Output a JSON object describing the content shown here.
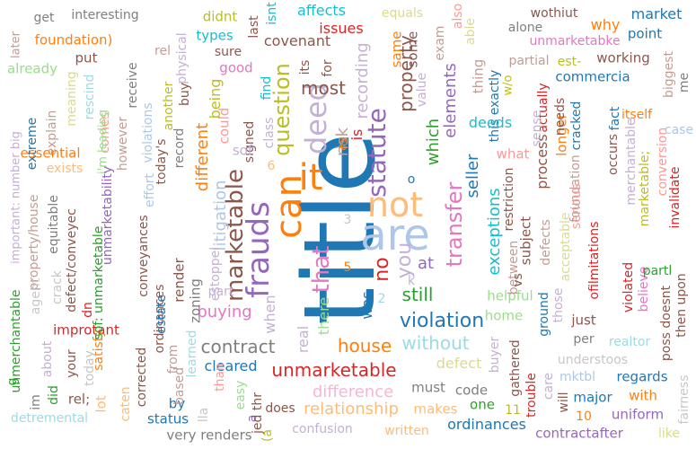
{
  "words": [
    {
      "text": "title",
      "color": "#1f77b4"
    },
    {
      "text": "are",
      "color": "#aec7e8"
    },
    {
      "text": "not",
      "color": "#ffbb78"
    },
    {
      "text": "can",
      "color": "#ff7f0e"
    },
    {
      "text": "frauds",
      "color": "#9467bd"
    },
    {
      "text": "marketable",
      "color": "#8c564b"
    },
    {
      "text": "that",
      "color": "#e377c2"
    },
    {
      "text": "it",
      "color": "#ff7f0e"
    },
    {
      "text": "deed",
      "color": "#c5b0d5"
    },
    {
      "text": "statute",
      "color": "#9467bd"
    },
    {
      "text": "transfer",
      "color": "#e377c2"
    },
    {
      "text": "question",
      "color": "#bcbd22"
    },
    {
      "text": "unmarketable",
      "color": "#d62728"
    },
    {
      "text": "violation",
      "color": "#1f77b4"
    },
    {
      "text": "house",
      "color": "#ff7f0e"
    },
    {
      "text": "without",
      "color": "#9edae5"
    },
    {
      "text": "contract",
      "color": "#7f7f7f"
    },
    {
      "text": "difference",
      "color": "#f7b6d2"
    },
    {
      "text": "relationship",
      "color": "#ffbb78"
    },
    {
      "text": "buying",
      "color": "#e377c2"
    },
    {
      "text": "cleared",
      "color": "#1f77b4"
    },
    {
      "text": "exceptions",
      "color": "#17becf"
    },
    {
      "text": "still",
      "color": "#2ca02c"
    },
    {
      "text": "property",
      "color": "#8c564b"
    },
    {
      "text": "most",
      "color": "#8c564b"
    },
    {
      "text": "seller",
      "color": "#1f77b4"
    },
    {
      "text": "elements",
      "color": "#9467bd"
    },
    {
      "text": "recording",
      "color": "#c5b0d5"
    },
    {
      "text": "risk",
      "color": "#c49c94"
    },
    {
      "text": "litigation",
      "color": "#aec7e8"
    },
    {
      "text": "different",
      "color": "#ff7f0e"
    },
    {
      "text": "covenant",
      "color": "#8c564b"
    },
    {
      "text": "issues",
      "color": "#d62728"
    },
    {
      "text": "affects",
      "color": "#17becf"
    },
    {
      "text": "equals",
      "color": "#dbdb8d"
    },
    {
      "text": "interesting",
      "color": "#7f7f7f"
    },
    {
      "text": "foundation)",
      "color": "#ff7f0e"
    },
    {
      "text": "get",
      "color": "#7f7f7f"
    },
    {
      "text": "later",
      "color": "#c49c94"
    },
    {
      "text": "already",
      "color": "#98df8a"
    },
    {
      "text": "put",
      "color": "#8c564b"
    },
    {
      "text": "rel",
      "color": "#c49c94"
    },
    {
      "text": "didnt",
      "color": "#bcbd22"
    },
    {
      "text": "types",
      "color": "#17becf"
    },
    {
      "text": "sure",
      "color": "#8c564b"
    },
    {
      "text": "good",
      "color": "#e377c2"
    },
    {
      "text": "being",
      "color": "#bcbd22"
    },
    {
      "text": "last",
      "color": "#8c564b"
    },
    {
      "text": "for",
      "color": "#8c564b"
    },
    {
      "text": "same",
      "color": "#ff7f0e"
    },
    {
      "text": "some",
      "color": "#8c564b"
    },
    {
      "text": "which",
      "color": "#2ca02c"
    },
    {
      "text": "this exactly",
      "color": "#1f77b4"
    },
    {
      "text": "deeds",
      "color": "#17becf"
    },
    {
      "text": "alone",
      "color": "#7f7f7f"
    },
    {
      "text": "wothiut",
      "color": "#8c564b"
    },
    {
      "text": "market",
      "color": "#1f77b4"
    },
    {
      "text": "why",
      "color": "#ff7f0e"
    },
    {
      "text": "point",
      "color": "#1f77b4"
    },
    {
      "text": "unmarketabke",
      "color": "#e377c2"
    },
    {
      "text": "partial",
      "color": "#c49c94"
    },
    {
      "text": "est-",
      "color": "#bcbd22"
    },
    {
      "text": "working",
      "color": "#8c564b"
    },
    {
      "text": "commercia",
      "color": "#1f77b4"
    },
    {
      "text": "biggest",
      "color": "#c49c94"
    },
    {
      "text": "me",
      "color": "#7f7f7f"
    },
    {
      "text": "itself",
      "color": "#ff7f0e"
    },
    {
      "text": "case",
      "color": "#aec7e8"
    },
    {
      "text": "conversion",
      "color": "#ff9896"
    },
    {
      "text": "marketable;",
      "color": "#bcbd22"
    },
    {
      "text": "invalidate",
      "color": "#d62728"
    },
    {
      "text": "fact",
      "color": "#1f77b4"
    },
    {
      "text": "occurs",
      "color": "#8c564b"
    },
    {
      "text": "merchantable",
      "color": "#c5b0d5"
    },
    {
      "text": "important: number big",
      "color": "#c5b0d5"
    },
    {
      "text": "extreme",
      "color": "#1f77b4"
    },
    {
      "text": "explain",
      "color": "#c49c94"
    },
    {
      "text": "meaning",
      "color": "#dbdb8d"
    },
    {
      "text": "rescind",
      "color": "#9edae5"
    },
    {
      "text": "essential",
      "color": "#ff7f0e"
    },
    {
      "text": "exists",
      "color": "#ffbb78"
    },
    {
      "text": "unmerchantable",
      "color": "#2ca02c"
    },
    {
      "text": "improtant",
      "color": "#d62728"
    },
    {
      "text": "satisfy",
      "color": "#ff7f0e"
    },
    {
      "text": "corrected",
      "color": "#8c564b"
    },
    {
      "text": "ordinances",
      "color": "#8c564b"
    },
    {
      "text": "conveyances",
      "color": "#8c564b"
    },
    {
      "text": "render",
      "color": "#8c564b"
    },
    {
      "text": "estate",
      "color": "#1f77b4"
    },
    {
      "text": "zoning",
      "color": "#7f7f7f"
    },
    {
      "text": "learned",
      "color": "#9edae5"
    },
    {
      "text": "from",
      "color": "#c49c94"
    },
    {
      "text": "easy",
      "color": "#98df8a"
    },
    {
      "text": "than",
      "color": "#ff9896"
    },
    {
      "text": "status",
      "color": "#1f77b4"
    },
    {
      "text": "by",
      "color": "#1f77b4"
    },
    {
      "text": "very renders",
      "color": "#7f7f7f"
    },
    {
      "text": "confusion",
      "color": "#c5b0d5"
    },
    {
      "text": "does",
      "color": "#8c564b"
    },
    {
      "text": "written",
      "color": "#ffbb78"
    },
    {
      "text": "makes",
      "color": "#ffbb78"
    },
    {
      "text": "must",
      "color": "#7f7f7f"
    },
    {
      "text": "code",
      "color": "#7f7f7f"
    },
    {
      "text": "one",
      "color": "#2ca02c"
    },
    {
      "text": "ordinances",
      "color": "#1f77b4"
    },
    {
      "text": "11",
      "color": "#bcbd22"
    },
    {
      "text": "defect",
      "color": "#dbdb8d"
    },
    {
      "text": "buyer",
      "color": "#c5b0d5"
    },
    {
      "text": "home",
      "color": "#98df8a"
    },
    {
      "text": "helpful",
      "color": "#98df8a"
    },
    {
      "text": "between",
      "color": "#c49c94"
    },
    {
      "text": "restriction",
      "color": "#8c564b"
    },
    {
      "text": "subject",
      "color": "#8c564b"
    },
    {
      "text": "defects",
      "color": "#c49c94"
    },
    {
      "text": "ground",
      "color": "#1f77b4"
    },
    {
      "text": "those",
      "color": "#c5b0d5"
    },
    {
      "text": "just",
      "color": "#8c564b"
    },
    {
      "text": "per",
      "color": "#7f7f7f"
    },
    {
      "text": "realtor",
      "color": "#9edae5"
    },
    {
      "text": "understoos",
      "color": "#c7c7c7"
    },
    {
      "text": "regards",
      "color": "#1f77b4"
    },
    {
      "text": "with",
      "color": "#ff7f0e"
    },
    {
      "text": "mktbl",
      "color": "#aec7e8"
    },
    {
      "text": "major",
      "color": "#1f77b4"
    },
    {
      "text": "uniform",
      "color": "#9467bd"
    },
    {
      "text": "10",
      "color": "#ff7f0e"
    },
    {
      "text": "will",
      "color": "#8c564b"
    },
    {
      "text": "contractafter",
      "color": "#9467bd"
    },
    {
      "text": "like",
      "color": "#dbdb8d"
    },
    {
      "text": "fairness",
      "color": "#c7c7c7"
    },
    {
      "text": "trouble",
      "color": "#d62728"
    },
    {
      "text": "care",
      "color": "#c5b0d5"
    },
    {
      "text": "gathered",
      "color": "#8c564b"
    },
    {
      "text": "process",
      "color": "#8c564b"
    },
    {
      "text": "longer",
      "color": "#ff7f0e"
    },
    {
      "text": "actually",
      "color": "#d62728"
    },
    {
      "text": "needs",
      "color": "#8c564b"
    },
    {
      "text": "cracked",
      "color": "#1f77b4"
    },
    {
      "text": "foundation",
      "color": "#c49c94"
    },
    {
      "text": "serious",
      "color": "#ff9896"
    },
    {
      "text": "acceptable",
      "color": "#dbdb8d"
    },
    {
      "text": "ofilmitations",
      "color": "#d62728"
    },
    {
      "text": "believe",
      "color": "#e377c2"
    },
    {
      "text": "violated",
      "color": "#d62728"
    },
    {
      "text": "partl",
      "color": "#2ca02c"
    },
    {
      "text": "then upon",
      "color": "#8c564b"
    },
    {
      "text": "poss doesnt",
      "color": "#8c564b"
    },
    {
      "text": "what",
      "color": "#ff9896"
    },
    {
      "text": "sense",
      "color": "#c5b0d5"
    },
    {
      "text": "w/o",
      "color": "#bcbd22"
    },
    {
      "text": "thing",
      "color": "#c49c94"
    },
    {
      "text": "able",
      "color": "#dbdb8d"
    },
    {
      "text": "also",
      "color": "#ff9896"
    },
    {
      "text": "exam",
      "color": "#c49c94"
    },
    {
      "text": "value",
      "color": "#c5b0d5"
    },
    {
      "text": "at",
      "color": "#9467bd"
    },
    {
      "text": "is",
      "color": "#d62728"
    },
    {
      "text": "as",
      "color": "#ff7f0e"
    },
    {
      "text": "was",
      "color": "#1f77b4"
    },
    {
      "text": "no",
      "color": "#d62728"
    },
    {
      "text": "you",
      "color": "#c5b0d5"
    },
    {
      "text": "there",
      "color": "#98df8a"
    },
    {
      "text": "real",
      "color": "#c5b0d5"
    },
    {
      "text": "part",
      "color": "#c5b0d5"
    },
    {
      "text": "when",
      "color": "#c5b0d5"
    },
    {
      "text": "estoppel",
      "color": "#c5b0d5"
    },
    {
      "text": "signed",
      "color": "#8c564b"
    },
    {
      "text": "could",
      "color": "#ff9896"
    },
    {
      "text": "sof",
      "color": "#c5b0d5"
    },
    {
      "text": "class",
      "color": "#c5b0d5"
    },
    {
      "text": "find",
      "color": "#17becf"
    },
    {
      "text": "its",
      "color": "#8c564b"
    },
    {
      "text": "isnt",
      "color": "#17becf"
    },
    {
      "text": "physical",
      "color": "#c5b0d5"
    },
    {
      "text": "receive",
      "color": "#7f7f7f"
    },
    {
      "text": "buy",
      "color": "#8c564b"
    },
    {
      "text": "another",
      "color": "#bcbd22"
    },
    {
      "text": "violations",
      "color": "#aec7e8"
    },
    {
      "text": "effort",
      "color": "#aec7e8"
    },
    {
      "text": "however",
      "color": "#c49c94"
    },
    {
      "text": "today's",
      "color": "#8c564b"
    },
    {
      "text": "record",
      "color": "#7f7f7f"
    },
    {
      "text": "comes",
      "color": "#ff9896"
    },
    {
      "text": "i'm leading",
      "color": "#98df8a"
    },
    {
      "text": "unmarketability",
      "color": "#9467bd"
    },
    {
      "text": "sof: unmarketable",
      "color": "#2ca02c"
    },
    {
      "text": "defect/conveyec",
      "color": "#8c564b"
    },
    {
      "text": "equitable",
      "color": "#7f7f7f"
    },
    {
      "text": "property/house",
      "color": "#c49c94"
    },
    {
      "text": "crack",
      "color": "#c7c7c7"
    },
    {
      "text": "agent",
      "color": "#c7c7c7"
    },
    {
      "text": "about",
      "color": "#c5b0d5"
    },
    {
      "text": "did",
      "color": "#2ca02c"
    },
    {
      "text": "im",
      "color": "#7f7f7f"
    },
    {
      "text": "your",
      "color": "#8c564b"
    },
    {
      "text": "dn",
      "color": "#d62728"
    },
    {
      "text": "rel;",
      "color": "#8c564b"
    },
    {
      "text": "today",
      "color": "#c7c7c7"
    },
    {
      "text": "lot",
      "color": "#ffbb78"
    },
    {
      "text": "caten",
      "color": "#ffbb78"
    },
    {
      "text": "detremental",
      "color": "#9edae5"
    },
    {
      "text": "based",
      "color": "#c49c94"
    },
    {
      "text": "3",
      "color": "#c7c7c7"
    },
    {
      "text": "5",
      "color": "#ff7f0e"
    },
    {
      "text": "6",
      "color": "#ffbb78"
    },
    {
      "text": "2",
      "color": "#9edae5"
    },
    {
      "text": "o",
      "color": "#1f77b4"
    },
    {
      "text": "k",
      "color": "#c5b0d5"
    },
    {
      "text": "vs",
      "color": "#8c564b"
    },
    {
      "text": "a",
      "color": "#9467bd"
    },
    {
      "text": "(a",
      "color": "#bcbd22"
    },
    {
      "text": "lla",
      "color": "#c7c7c7"
    },
    {
      "text": "jed thr",
      "color": "#8c564b"
    },
    {
      "text": "g",
      "color": "#2ca02c"
    }
  ]
}
